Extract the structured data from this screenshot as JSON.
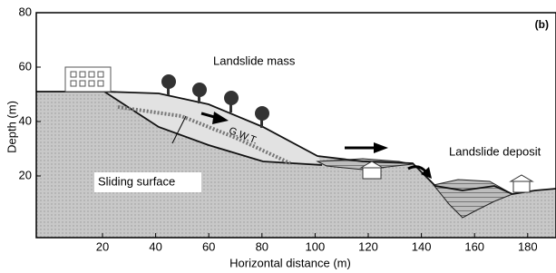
{
  "panel_label": "(b)",
  "axes": {
    "xlabel": "Horizontal distance (m)",
    "ylabel": "Depth (m)",
    "xticks": [
      20,
      40,
      60,
      80,
      100,
      120,
      140,
      160,
      180
    ],
    "yticks": [
      20,
      40,
      60,
      80
    ]
  },
  "labels": {
    "landslide_mass": "Landslide mass",
    "sliding_surface": "Sliding surface",
    "gwt": "G.W.T.",
    "landslide_deposit": "Landslide deposit"
  }
}
